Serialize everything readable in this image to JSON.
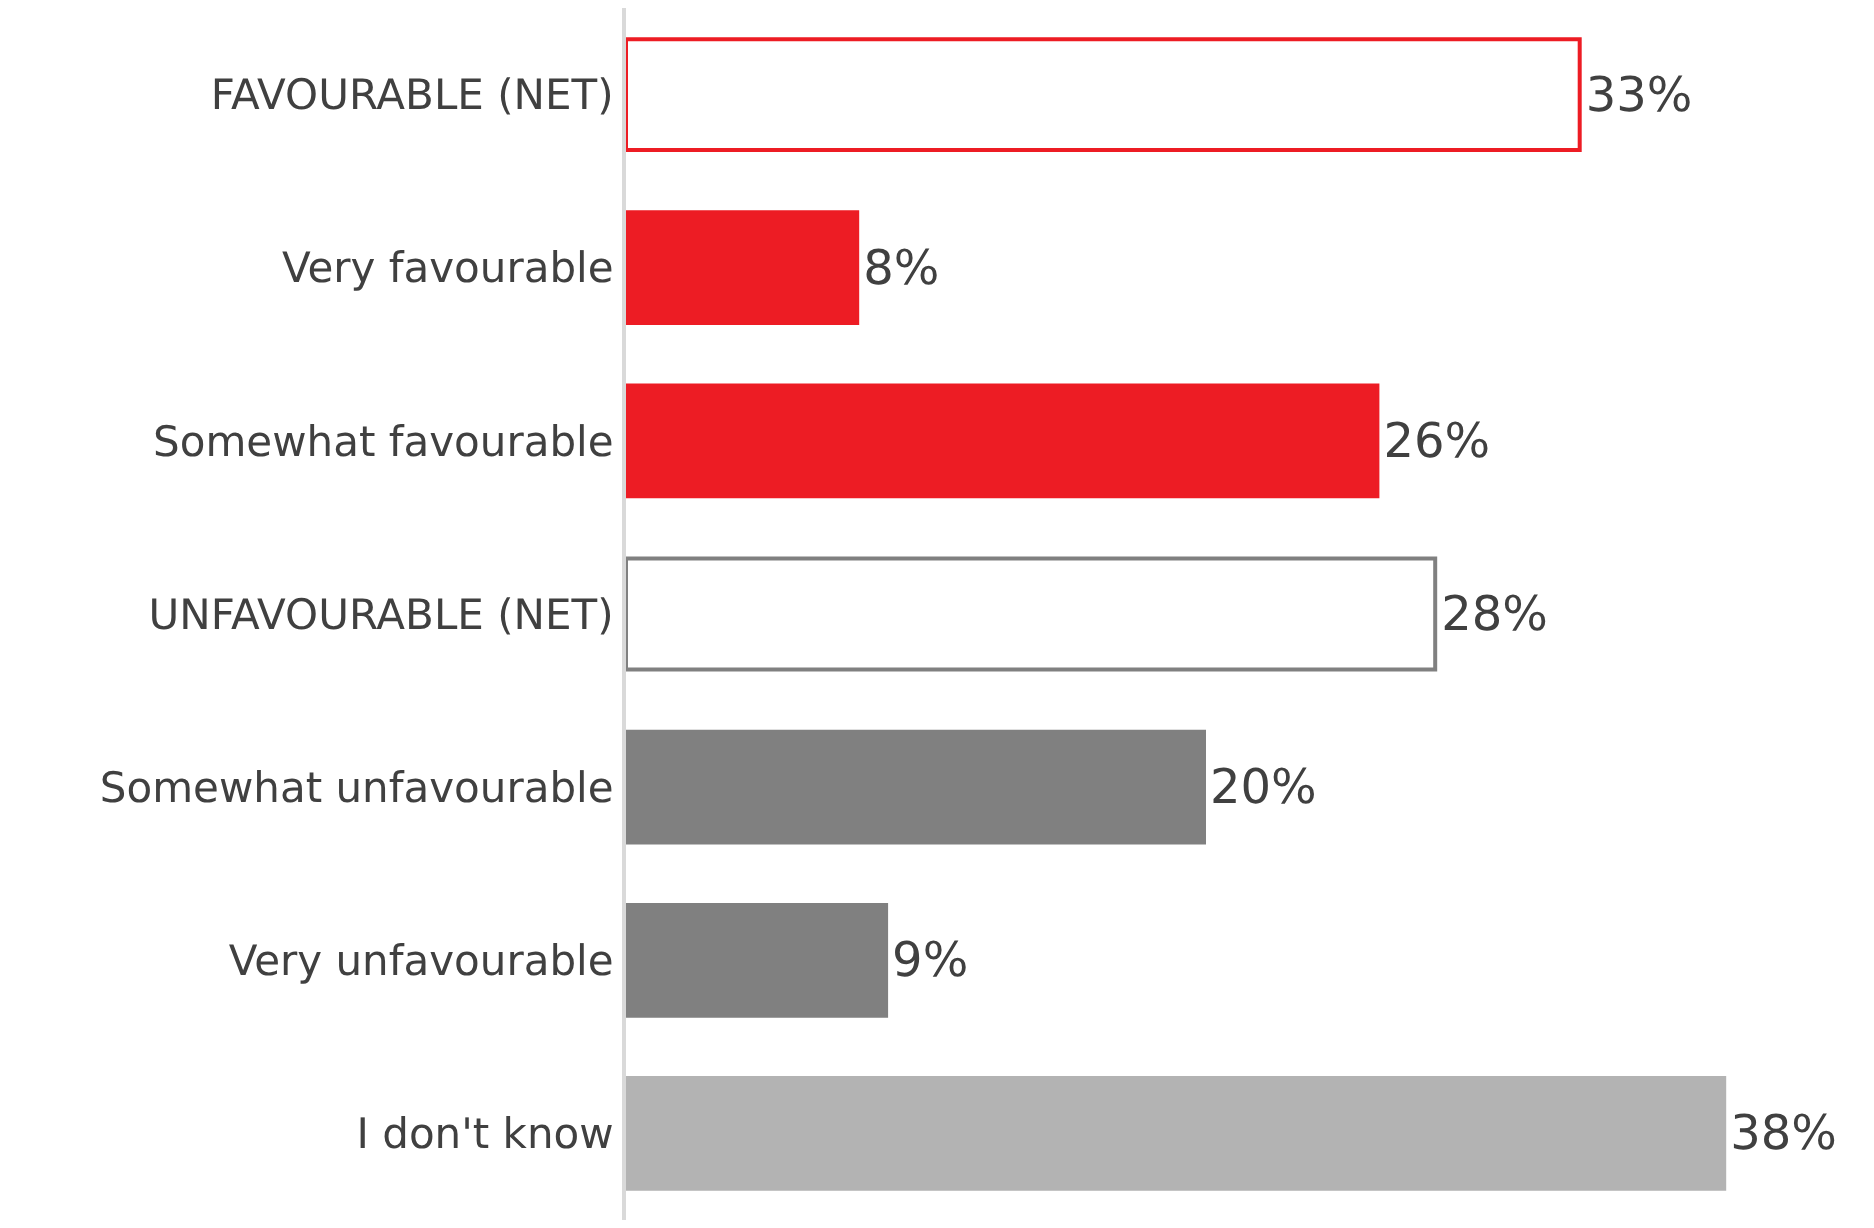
{
  "chart_data": {
    "type": "bar",
    "orientation": "horizontal",
    "categories": [
      "FAVOURABLE (NET)",
      "Very favourable",
      "Somewhat favourable",
      "UNFAVOURABLE (NET)",
      "Somewhat unfavourable",
      "Very unfavourable",
      "I don't know"
    ],
    "values": [
      33,
      8,
      26,
      28,
      20,
      9,
      38
    ],
    "value_labels": [
      "33%",
      "8%",
      "26%",
      "28%",
      "20%",
      "9%",
      "38%"
    ],
    "colors": [
      "#ffffff",
      "#ed1c24",
      "#ed1c24",
      "#ffffff",
      "#808080",
      "#808080",
      "#b3b3b3"
    ],
    "tick_labels": "y"
  }
}
